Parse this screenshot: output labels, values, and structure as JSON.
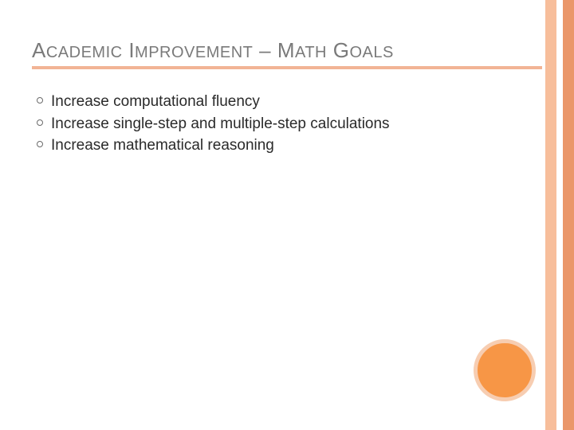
{
  "slide": {
    "title_parts": {
      "p1_big": "A",
      "p1_small": "CADEMIC",
      "sp1": " ",
      "p2_big": "I",
      "p2_small": "MPROVEMENT",
      "sp2": " ",
      "dash_big": "– ",
      "p3_big": "M",
      "p3_small": "ATH",
      "sp3": " ",
      "p4_big": "G",
      "p4_small": "OALS"
    },
    "bullets": [
      "Increase computational fluency",
      "Increase single-step and multiple-step calculations",
      "Increase mathematical reasoning"
    ]
  },
  "style": {
    "background_color": "#ffffff",
    "title_color": "#7a7a7a",
    "title_big_fontsize": 26,
    "title_small_fontsize": 20,
    "underline_color": "#f2b495",
    "underline_height": 4,
    "bullet_text_color": "#2a2a2a",
    "bullet_fontsize": 19,
    "bullet_ring_color": "#6b6b6b",
    "stripe_light_color": "#f7be9b",
    "stripe_dark_color": "#ea976a",
    "stripe_width": 14,
    "stripe_gap": 8,
    "circle_fill": "#f79646",
    "circle_border": "#f7cdb1",
    "circle_diameter": 78,
    "circle_border_width": 5
  }
}
